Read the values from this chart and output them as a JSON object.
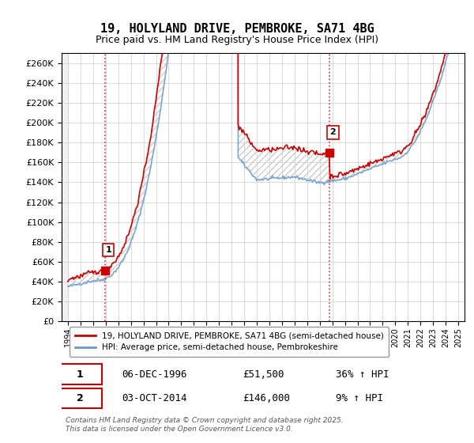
{
  "title": "19, HOLYLAND DRIVE, PEMBROKE, SA71 4BG",
  "subtitle": "Price paid vs. HM Land Registry's House Price Index (HPI)",
  "property_label": "19, HOLYLAND DRIVE, PEMBROKE, SA71 4BG (semi-detached house)",
  "hpi_label": "HPI: Average price, semi-detached house, Pembrokeshire",
  "property_color": "#cc0000",
  "hpi_color": "#6699cc",
  "annotation1_date": "06-DEC-1996",
  "annotation1_price": "£51,500",
  "annotation1_hpi": "36% ↑ HPI",
  "annotation2_date": "03-OCT-2014",
  "annotation2_price": "£146,000",
  "annotation2_hpi": "9% ↑ HPI",
  "footer": "Contains HM Land Registry data © Crown copyright and database right 2025.\nThis data is licensed under the Open Government Licence v3.0.",
  "ylim": [
    0,
    270000
  ],
  "ytick_step": 20000,
  "purchase1_year": 1996.92,
  "purchase2_year": 2014.75,
  "xmin": 1993.5,
  "xmax": 2025.5
}
